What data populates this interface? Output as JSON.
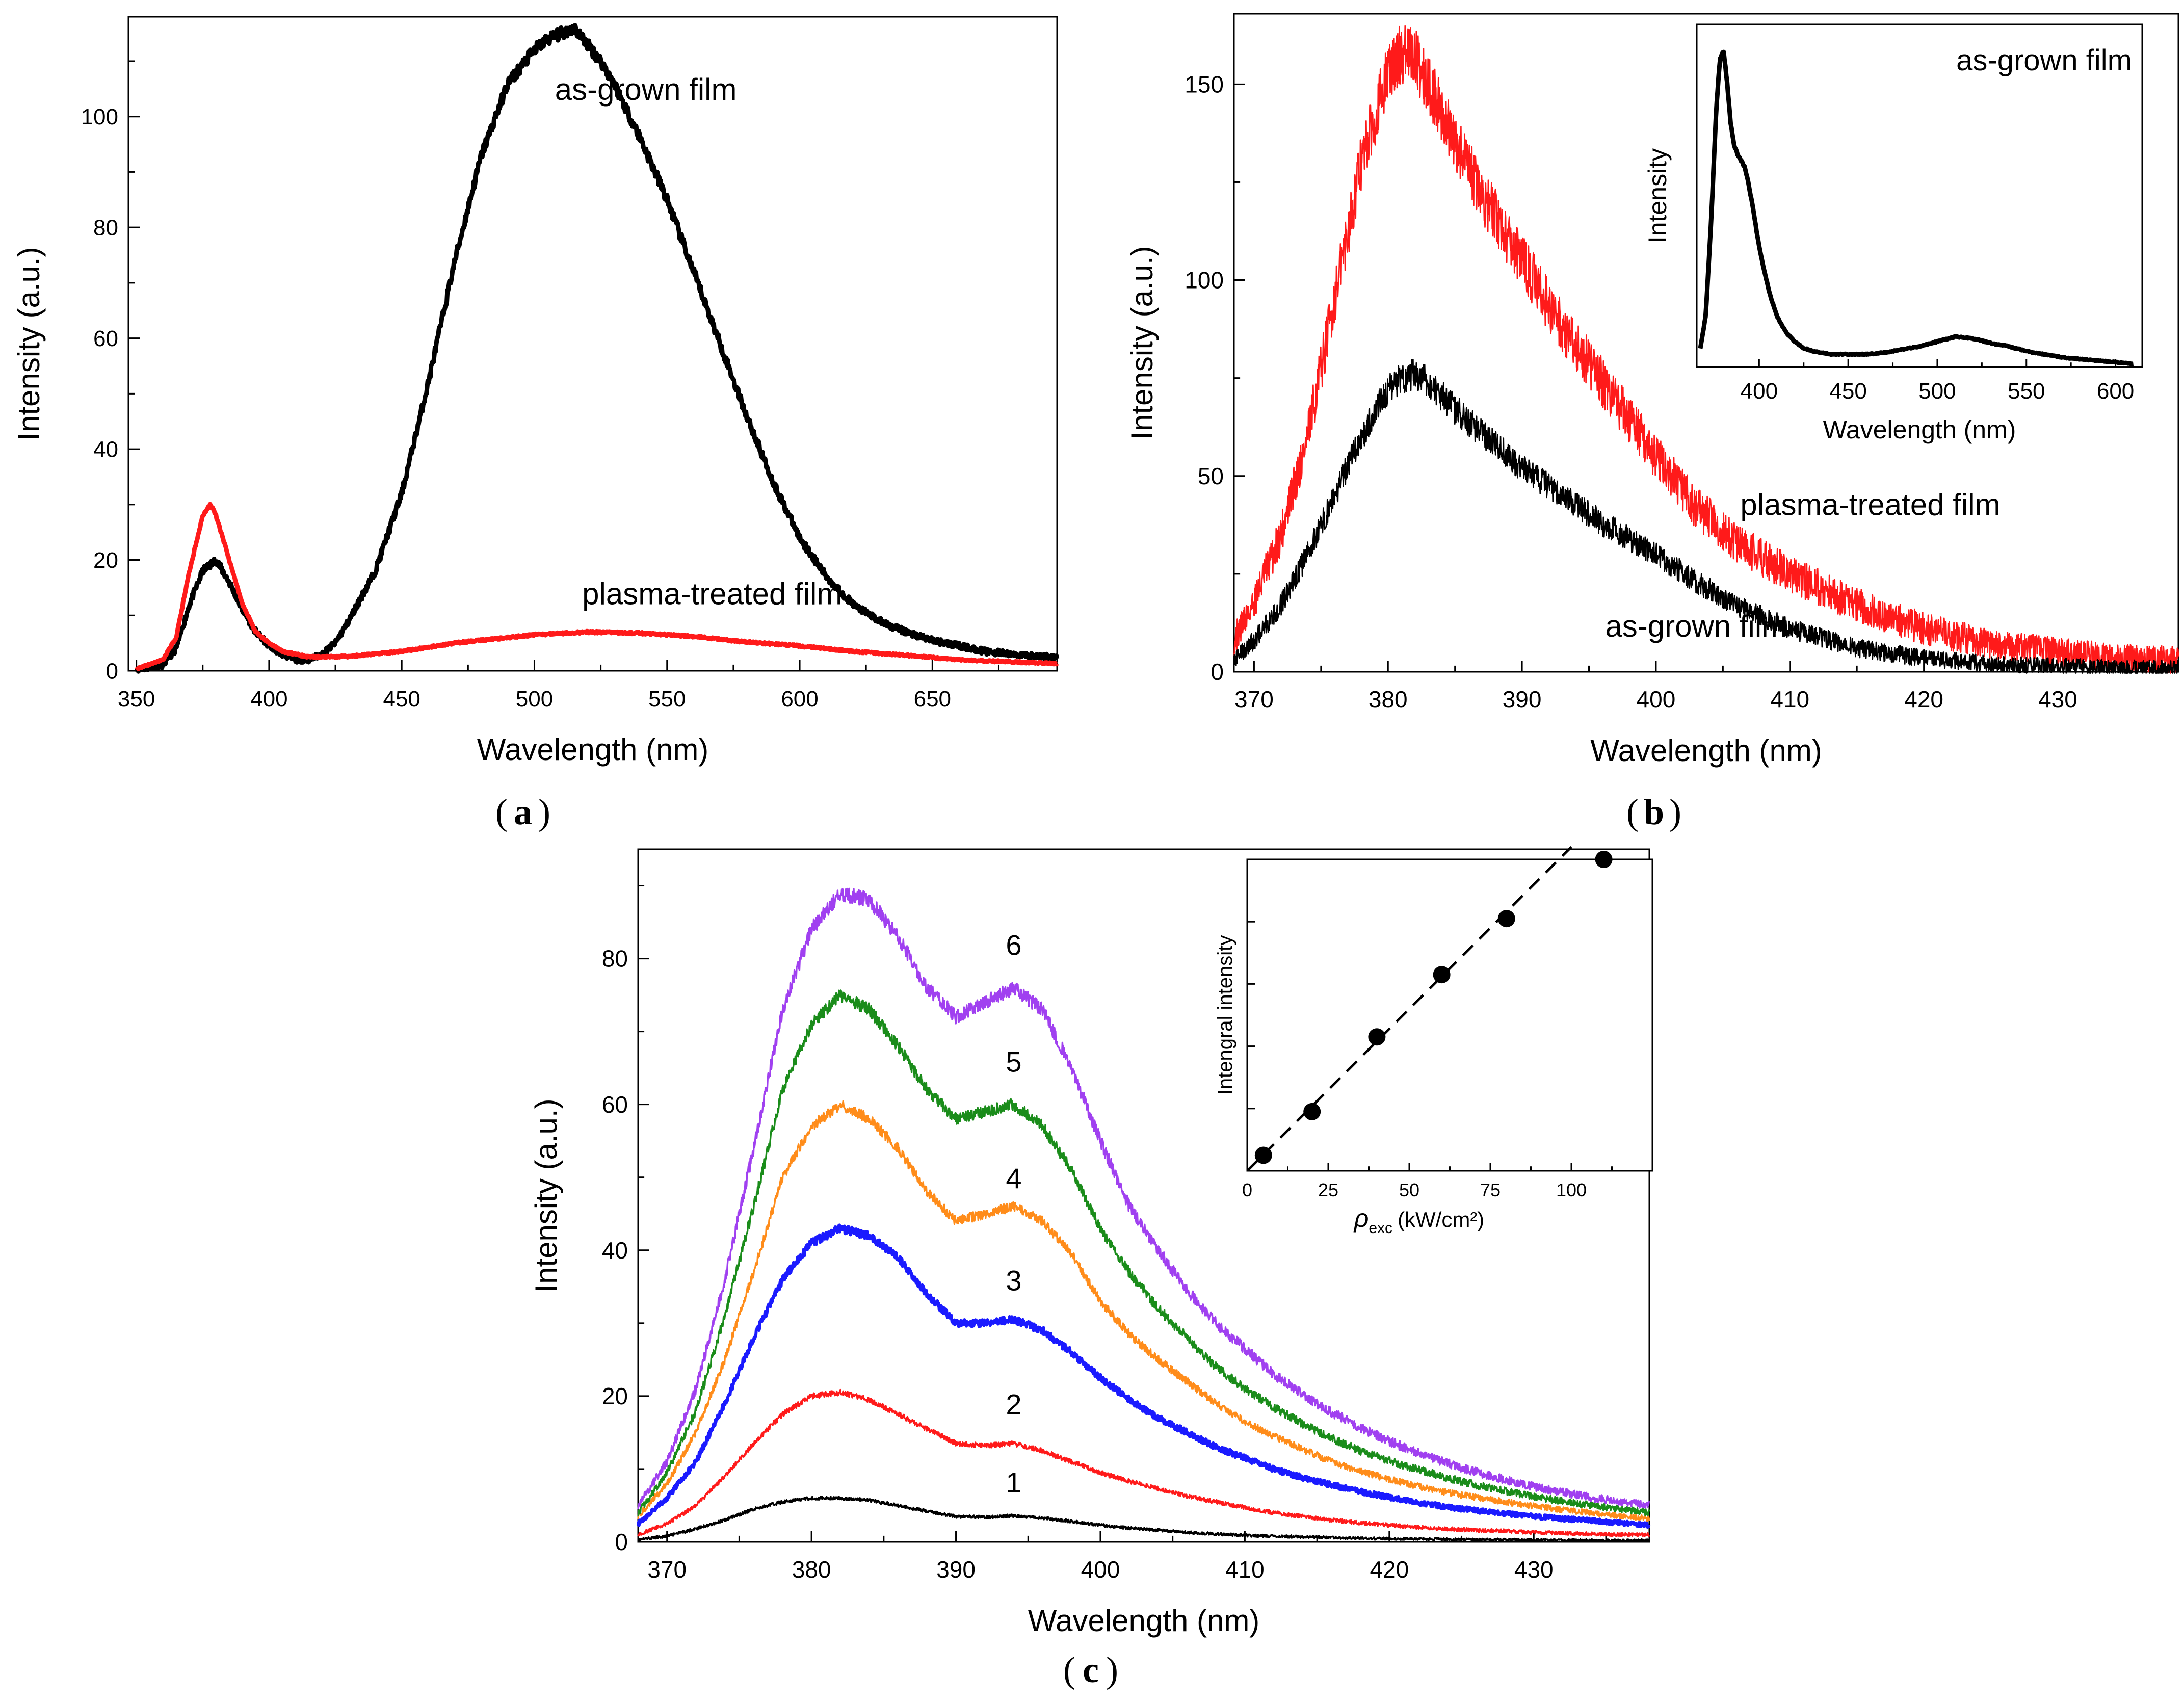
{
  "colors": {
    "black": "#000000",
    "red": "#ff1a1a",
    "blue": "#1a1aff",
    "orange": "#ff8c1a",
    "green": "#1a8c1a",
    "purple": "#a040f0"
  },
  "chart_data": [
    {
      "id": "a",
      "panel_label": "a",
      "type": "line",
      "xlabel": "Wavelength (nm)",
      "ylabel": "Intensity (a.u.)",
      "xlim": [
        347,
        697
      ],
      "ylim": [
        0,
        118
      ],
      "xticks": [
        350,
        400,
        450,
        500,
        550,
        600,
        650
      ],
      "yticks": [
        0,
        20,
        40,
        60,
        80,
        100
      ],
      "series": [
        {
          "name": "as-grown film",
          "color": "#000000",
          "x": [
            350,
            360,
            365,
            370,
            375,
            380,
            385,
            390,
            395,
            400,
            405,
            410,
            415,
            420,
            425,
            430,
            440,
            450,
            460,
            470,
            480,
            490,
            500,
            505,
            510,
            515,
            520,
            525,
            530,
            540,
            550,
            560,
            570,
            580,
            590,
            600,
            610,
            620,
            630,
            640,
            650,
            660,
            670,
            680,
            690,
            697
          ],
          "y": [
            0.2,
            1,
            4,
            12,
            18,
            20,
            16,
            11,
            7,
            4.5,
            3,
            2,
            2,
            3,
            5,
            9,
            18,
            32,
            52,
            74,
            93,
            106,
            112,
            114,
            115,
            116,
            113,
            110,
            106,
            96,
            85,
            72,
            59,
            46,
            34,
            24,
            17,
            12,
            9,
            7,
            5.5,
            4.5,
            3.5,
            3,
            2.6,
            2.5
          ]
        },
        {
          "name": "plasma-treated film",
          "color": "#ff1a1a",
          "x": [
            350,
            360,
            365,
            370,
            375,
            378,
            380,
            385,
            390,
            395,
            400,
            405,
            410,
            415,
            420,
            430,
            450,
            470,
            500,
            520,
            540,
            560,
            580,
            600,
            620,
            640,
            660,
            680,
            697
          ],
          "y": [
            0.3,
            2,
            6,
            18,
            28,
            30,
            28,
            20,
            12,
            7,
            5,
            3.5,
            3,
            2.5,
            2.5,
            2.6,
            3.5,
            5,
            6.5,
            7,
            6.8,
            6.2,
            5.2,
            4.5,
            3.5,
            2.8,
            2,
            1.6,
            1.3
          ]
        }
      ],
      "annotations": [
        {
          "text": "as-grown film",
          "x": 542,
          "y": 103
        },
        {
          "text": "plasma-treated film",
          "x": 567,
          "y": 12
        }
      ]
    },
    {
      "id": "b",
      "panel_label": "b",
      "type": "line",
      "xlabel": "Wavelength (nm)",
      "ylabel": "Intensity (a.u.)",
      "xlim": [
        368.5,
        439
      ],
      "ylim": [
        0,
        168
      ],
      "xticks": [
        370,
        380,
        390,
        400,
        410,
        420,
        430
      ],
      "yticks": [
        0,
        50,
        100,
        150
      ],
      "series": [
        {
          "name": "plasma-treated film",
          "color": "#ff1a1a",
          "x": [
            368.5,
            370,
            372,
            374,
            376,
            378,
            380,
            381,
            382,
            383,
            385,
            387,
            390,
            393,
            396,
            400,
            403,
            406,
            410,
            415,
            420,
            425,
            430,
            435,
            439
          ],
          "y": [
            8,
            18,
            35,
            60,
            95,
            130,
            153,
            158,
            157,
            150,
            135,
            122,
            105,
            88,
            74,
            55,
            42,
            33,
            25,
            17,
            11,
            7,
            5,
            3.5,
            3
          ]
        },
        {
          "name": "as-grown film",
          "color": "#000000",
          "x": [
            368.5,
            370,
            372,
            374,
            376,
            378,
            380,
            381,
            382,
            383,
            385,
            388,
            390,
            393,
            396,
            400,
            403,
            406,
            410,
            415,
            420,
            425,
            430,
            435,
            439
          ],
          "y": [
            3,
            8,
            17,
            30,
            45,
            60,
            72,
            75,
            76,
            74,
            67,
            58,
            52,
            45,
            38,
            30,
            23,
            17,
            11,
            6,
            3.5,
            2,
            1.5,
            1,
            1
          ]
        }
      ],
      "annotations": [
        {
          "text": "plasma-treated film",
          "x": 416,
          "y": 40
        },
        {
          "text": "as-grown film",
          "x": 403,
          "y": 9
        }
      ],
      "inset": {
        "type": "line",
        "xlabel": "Wavelength (nm)",
        "ylabel": "Intensity",
        "xlim": [
          365,
          615
        ],
        "ylim": [
          0,
          1.08
        ],
        "xticks": [
          400,
          450,
          500,
          550,
          600
        ],
        "legend_text": "as-grown film",
        "series": [
          {
            "name": "as-grown film",
            "color": "#000000",
            "x": [
              367,
              370,
              373,
              376,
              378,
              380,
              382,
              384,
              386,
              388,
              390,
              392,
              394,
              396,
              398,
              400,
              403,
              406,
              410,
              415,
              420,
              425,
              430,
              435,
              440,
              450,
              460,
              470,
              480,
              490,
              500,
              510,
              520,
              530,
              540,
              550,
              560,
              570,
              580,
              590,
              600,
              610
            ],
            "y": [
              0.06,
              0.16,
              0.45,
              0.82,
              0.97,
              1.0,
              0.9,
              0.77,
              0.7,
              0.67,
              0.65,
              0.63,
              0.58,
              0.52,
              0.45,
              0.38,
              0.3,
              0.23,
              0.16,
              0.11,
              0.08,
              0.06,
              0.05,
              0.045,
              0.04,
              0.04,
              0.04,
              0.045,
              0.055,
              0.065,
              0.08,
              0.095,
              0.09,
              0.075,
              0.065,
              0.05,
              0.04,
              0.03,
              0.025,
              0.02,
              0.015,
              0.01
            ]
          }
        ]
      }
    },
    {
      "id": "c",
      "panel_label": "c",
      "type": "line",
      "xlabel": "Wavelength (nm)",
      "ylabel": "Intensity (a.u.)",
      "xlim": [
        368,
        438
      ],
      "ylim": [
        0,
        95
      ],
      "xticks": [
        370,
        380,
        390,
        400,
        410,
        420,
        430
      ],
      "yticks": [
        0,
        20,
        40,
        60,
        80
      ],
      "x": [
        368,
        370,
        372,
        374,
        376,
        378,
        380,
        382,
        384,
        386,
        388,
        390,
        392,
        394,
        396,
        398,
        400,
        402,
        404,
        406,
        408,
        410,
        412,
        414,
        416,
        418,
        420,
        422,
        424,
        426,
        428,
        430,
        432,
        434,
        436,
        438
      ],
      "series": [
        {
          "name": "1",
          "color": "#000000",
          "y": [
            0.3,
            0.8,
            1.8,
            3,
            4.5,
            5.5,
            6,
            6,
            5.7,
            5,
            4.2,
            3.5,
            3.4,
            3.6,
            3.3,
            2.8,
            2.3,
            1.9,
            1.6,
            1.3,
            1.1,
            0.9,
            0.8,
            0.7,
            0.6,
            0.5,
            0.45,
            0.4,
            0.35,
            0.3,
            0.3,
            0.25,
            0.25,
            0.2,
            0.2,
            0.2
          ]
        },
        {
          "name": "2",
          "color": "#ff1a1a",
          "y": [
            1,
            2.5,
            5,
            9,
            13.5,
            17.5,
            20,
            20.5,
            19.5,
            17.5,
            15.5,
            13.5,
            13.2,
            13.5,
            12.5,
            11,
            9.5,
            8.3,
            7.3,
            6.3,
            5.5,
            4.7,
            4,
            3.5,
            3,
            2.6,
            2.3,
            2,
            1.8,
            1.6,
            1.5,
            1.3,
            1.2,
            1.1,
            1,
            1
          ]
        },
        {
          "name": "3",
          "color": "#1a1aff",
          "y": [
            2.5,
            6,
            11,
            19,
            28,
            36,
            41,
            43,
            42,
            39,
            34,
            30,
            30,
            30.5,
            29,
            26,
            22.5,
            19.5,
            17,
            15,
            13,
            11.5,
            10,
            8.8,
            7.8,
            6.9,
            6.1,
            5.4,
            4.8,
            4.3,
            3.9,
            3.5,
            3.2,
            2.9,
            2.6,
            2.3
          ]
        },
        {
          "name": "4",
          "color": "#ff8c1a",
          "y": [
            3.5,
            8,
            15,
            25,
            37,
            50,
            57,
            60,
            58,
            54,
            48,
            44,
            45,
            46,
            44,
            39.5,
            33,
            28.5,
            25,
            22,
            19,
            16.5,
            14.5,
            12.7,
            11,
            9.7,
            8.6,
            7.6,
            6.8,
            6.1,
            5.5,
            4.9,
            4.4,
            4,
            3.6,
            3.2
          ]
        },
        {
          "name": "5",
          "color": "#1a8c1a",
          "y": [
            4,
            9.5,
            18,
            31,
            46,
            62,
            71,
            75,
            73,
            68,
            62,
            58,
            59,
            60,
            57,
            51,
            43,
            37,
            32,
            28,
            24,
            21,
            18.5,
            16.2,
            14.2,
            12.5,
            11.1,
            9.9,
            8.8,
            7.8,
            7,
            6.2,
            5.6,
            5,
            4.5,
            4
          ]
        },
        {
          "name": "6",
          "color": "#a040f0",
          "y": [
            5,
            11,
            21,
            36,
            54,
            73,
            84,
            89,
            88,
            83,
            76,
            72,
            74,
            76,
            73,
            65,
            55,
            46,
            40,
            34.5,
            30,
            26.5,
            23,
            20.2,
            17.8,
            15.7,
            13.8,
            12.2,
            10.8,
            9.6,
            8.5,
            7.6,
            6.8,
            6.1,
            5.5,
            5
          ]
        }
      ],
      "annotations": [
        {
          "text": "1",
          "x": 394,
          "y": 6.8
        },
        {
          "text": "2",
          "x": 394,
          "y": 17.5
        },
        {
          "text": "3",
          "x": 394,
          "y": 34.5
        },
        {
          "text": "4",
          "x": 394,
          "y": 48.5
        },
        {
          "text": "5",
          "x": 394,
          "y": 64.5
        },
        {
          "text": "6",
          "x": 394,
          "y": 80.5
        }
      ],
      "inset": {
        "type": "scatter",
        "xlabel_symbol": "ρ",
        "xlabel_sub": "exc",
        "xlabel_unit": "(kW/cm²)",
        "ylabel": "Intengral intensity",
        "xlim": [
          0,
          125
        ],
        "ylim": [
          0,
          1.0
        ],
        "xticks": [
          0,
          25,
          50,
          75,
          100
        ],
        "points": {
          "x": [
            5,
            20,
            40,
            60,
            80,
            110
          ],
          "y": [
            0.05,
            0.19,
            0.43,
            0.63,
            0.81,
            1.0
          ]
        },
        "fit_line": {
          "x": [
            0,
            100
          ],
          "y": [
            0,
            1.04
          ],
          "style": "dashed"
        }
      }
    }
  ]
}
